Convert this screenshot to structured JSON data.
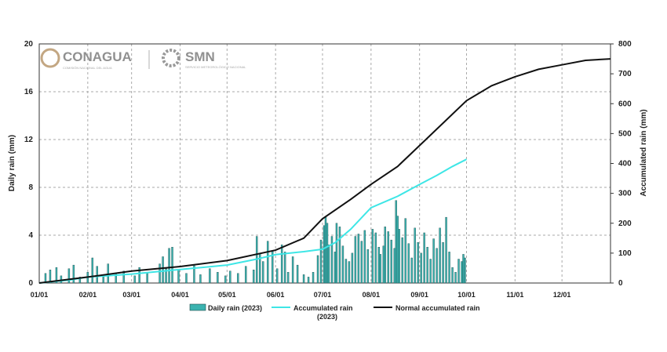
{
  "logos": {
    "conagua": "CONAGUA",
    "conagua_sub": "COMISIÓN NACIONAL DEL AGUA",
    "smn": "SMN",
    "smn_sub": "SERVICIO METEOROLÓGICO NACIONAL"
  },
  "chart_data": {
    "type": "bar-line",
    "y_label": "Daily rain (mm)",
    "y2_label": "Accumulated rain (mm)",
    "xlim": [
      1,
      366
    ],
    "ylim": [
      0,
      20
    ],
    "y2lim": [
      0,
      800
    ],
    "xticks": [
      {
        "value": 1,
        "label": "01/01"
      },
      {
        "value": 32,
        "label": "02/01"
      },
      {
        "value": 60,
        "label": "03/01"
      },
      {
        "value": 91,
        "label": "04/01"
      },
      {
        "value": 121,
        "label": "05/01"
      },
      {
        "value": 152,
        "label": "06/01"
      },
      {
        "value": 182,
        "label": "07/01"
      },
      {
        "value": 213,
        "label": "08/01"
      },
      {
        "value": 244,
        "label": "09/01"
      },
      {
        "value": 274,
        "label": "10/01"
      },
      {
        "value": 305,
        "label": "11/01"
      },
      {
        "value": 335,
        "label": "12/01"
      }
    ],
    "yticks": [
      0,
      4,
      8,
      12,
      16,
      20
    ],
    "y2ticks": [
      0,
      100,
      200,
      300,
      400,
      500,
      600,
      700,
      800
    ],
    "grid": true,
    "series": [
      {
        "name": "Daily rain (2023)",
        "kind": "bar",
        "color": "#3bb3b0",
        "axis": "y",
        "x": [
          5,
          8,
          12,
          15,
          20,
          23,
          27,
          32,
          35,
          38,
          42,
          45,
          50,
          55,
          62,
          65,
          70,
          78,
          80,
          82,
          84,
          86,
          90,
          95,
          100,
          104,
          110,
          115,
          120,
          123,
          128,
          133,
          138,
          140,
          142,
          144,
          147,
          150,
          153,
          156,
          158,
          160,
          163,
          166,
          170,
          173,
          176,
          179,
          181,
          183,
          184,
          185,
          186,
          188,
          190,
          191,
          193,
          195,
          197,
          199,
          201,
          203,
          205,
          207,
          209,
          211,
          214,
          216,
          218,
          219,
          221,
          222,
          224,
          226,
          228,
          229,
          230,
          231,
          233,
          235,
          237,
          239,
          241,
          243,
          245,
          247,
          249,
          251,
          253,
          255,
          257,
          259,
          261,
          263,
          265,
          267,
          269,
          271,
          272,
          273
        ],
        "values": [
          0.8,
          1.1,
          1.3,
          0.6,
          1.2,
          1.5,
          0.5,
          0.9,
          2.1,
          1.4,
          0.7,
          1.6,
          0.8,
          1.0,
          0.6,
          1.3,
          0.9,
          1.6,
          2.2,
          1.2,
          2.9,
          3.0,
          1.1,
          0.8,
          1.5,
          0.7,
          1.2,
          0.9,
          0.6,
          1.0,
          0.8,
          1.4,
          1.1,
          3.9,
          2.5,
          1.8,
          3.5,
          2.7,
          1.2,
          3.2,
          2.6,
          0.9,
          2.2,
          1.5,
          0.7,
          0.5,
          0.9,
          2.3,
          3.6,
          4.8,
          5.5,
          5.0,
          3.2,
          3.9,
          2.6,
          5.0,
          4.7,
          3.1,
          2.0,
          1.8,
          2.5,
          3.9,
          4.1,
          3.5,
          4.4,
          2.8,
          4.5,
          4.2,
          3.0,
          2.4,
          3.1,
          4.7,
          4.3,
          3.6,
          2.9,
          6.9,
          5.6,
          4.5,
          3.8,
          5.4,
          3.3,
          2.1,
          4.6,
          3.4,
          2.5,
          4.2,
          3.0,
          2.0,
          3.7,
          2.9,
          4.6,
          3.4,
          5.5,
          2.6,
          1.3,
          0.9,
          2.0,
          1.8,
          2.4,
          2.1
        ]
      },
      {
        "name": "Accumulated rain (2023)",
        "kind": "line",
        "color": "#3ee6e6",
        "axis": "y2",
        "x": [
          1,
          20,
          32,
          60,
          91,
          121,
          140,
          152,
          170,
          182,
          190,
          200,
          213,
          230,
          244,
          255,
          265,
          274
        ],
        "values": [
          0,
          10,
          20,
          30,
          45,
          60,
          80,
          95,
          105,
          113,
          135,
          180,
          252,
          290,
          330,
          360,
          390,
          414
        ]
      },
      {
        "name": "Normal accumulated rain",
        "kind": "line",
        "color": "#111111",
        "axis": "y2",
        "x": [
          1,
          32,
          60,
          91,
          121,
          152,
          170,
          182,
          200,
          213,
          230,
          244,
          260,
          274,
          290,
          305,
          320,
          335,
          350,
          366
        ],
        "values": [
          0,
          20,
          40,
          55,
          75,
          110,
          150,
          215,
          280,
          330,
          390,
          460,
          540,
          610,
          660,
          690,
          715,
          730,
          745,
          750
        ]
      }
    ]
  }
}
